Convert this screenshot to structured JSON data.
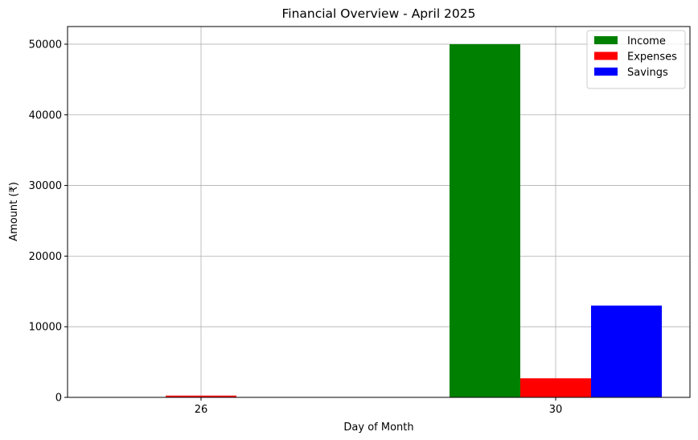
{
  "chart_data": {
    "type": "bar",
    "title": "Financial Overview - April 2025",
    "xlabel": "Day of Month",
    "ylabel": "Amount (₹)",
    "categories": [
      "26",
      "30"
    ],
    "ylim": [
      0,
      52500
    ],
    "yticks": [
      0,
      10000,
      20000,
      30000,
      40000,
      50000
    ],
    "grid": true,
    "legend_position": "upper right",
    "series": [
      {
        "name": "Income",
        "color": "#008000",
        "values": [
          0,
          50000
        ]
      },
      {
        "name": "Expenses",
        "color": "#ff0000",
        "values": [
          250,
          2700
        ]
      },
      {
        "name": "Savings",
        "color": "#0000ff",
        "values": [
          0,
          13000
        ]
      }
    ]
  }
}
